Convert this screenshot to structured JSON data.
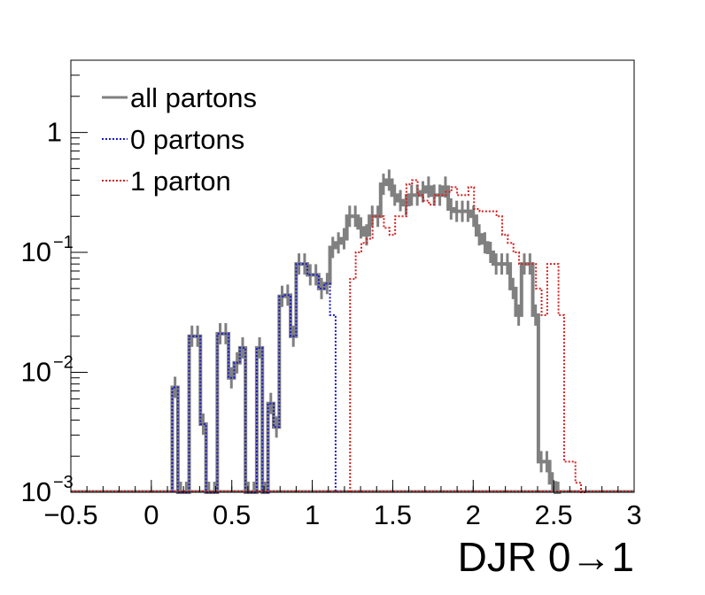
{
  "chart_data": {
    "type": "line",
    "xlabel": "DJR 0→1",
    "ylabel": "",
    "xlim": [
      -0.5,
      3
    ],
    "ylim": [
      0.001,
      4
    ],
    "log_y": true,
    "grid": false,
    "legend_position": "top-left",
    "x_ticks": [
      -0.5,
      0,
      0.5,
      1,
      1.5,
      2,
      2.5,
      3
    ],
    "x_tick_labels": [
      "−0.5",
      "0",
      "0.5",
      "1",
      "1.5",
      "2",
      "2.5",
      "3"
    ],
    "y_ticks": [
      {
        "value": 0.001,
        "base": "10",
        "exp": "−3"
      },
      {
        "value": 0.01,
        "base": "10",
        "exp": "−2"
      },
      {
        "value": 0.1,
        "base": "10",
        "exp": "−1"
      },
      {
        "value": 1,
        "base": "1",
        "exp": ""
      }
    ],
    "bin_width": 0.035,
    "series": [
      {
        "name": "all partons",
        "color": "#808080",
        "style": "solid",
        "start": 0.13,
        "values": [
          0.0075,
          0.001,
          0.001,
          0.02,
          0.02,
          0.0037,
          0.001,
          0.001,
          0.021,
          0.021,
          0.009,
          0.012,
          0.016,
          0.001,
          0.001,
          0.016,
          0.001,
          0.0055,
          0.0035,
          0.043,
          0.044,
          0.02,
          0.08,
          0.08,
          0.065,
          0.065,
          0.05,
          0.055,
          0.11,
          0.12,
          0.13,
          0.2,
          0.2,
          0.16,
          0.14,
          0.2,
          0.2,
          0.37,
          0.4,
          0.3,
          0.27,
          0.25,
          0.3,
          0.3,
          0.32,
          0.35,
          0.3,
          0.3,
          0.35,
          0.23,
          0.22,
          0.22,
          0.22,
          0.2,
          0.14,
          0.12,
          0.1,
          0.08,
          0.08,
          0.08,
          0.05,
          0.03,
          0.08,
          0.08,
          0.03,
          0.0018,
          0.0018,
          0.0012,
          0.001
        ]
      },
      {
        "name": "0 partons",
        "color": "#1a1acc",
        "style": "dotted",
        "start": 0.13,
        "values": [
          0.0075,
          0.001,
          0.001,
          0.02,
          0.02,
          0.0037,
          0.001,
          0.001,
          0.021,
          0.021,
          0.009,
          0.012,
          0.016,
          0.001,
          0.001,
          0.016,
          0.001,
          0.0055,
          0.0035,
          0.043,
          0.044,
          0.02,
          0.08,
          0.08,
          0.065,
          0.065,
          0.05,
          0.055,
          0.03
        ]
      },
      {
        "name": "1 parton",
        "color": "#d42020",
        "style": "dotted",
        "start": 1.235,
        "values": [
          0.06,
          0.1,
          0.12,
          0.13,
          0.2,
          0.2,
          0.16,
          0.14,
          0.2,
          0.2,
          0.37,
          0.4,
          0.3,
          0.27,
          0.25,
          0.3,
          0.3,
          0.32,
          0.35,
          0.3,
          0.3,
          0.35,
          0.23,
          0.22,
          0.22,
          0.22,
          0.2,
          0.14,
          0.12,
          0.1,
          0.08,
          0.08,
          0.08,
          0.05,
          0.03,
          0.08,
          0.08,
          0.03,
          0.0018,
          0.0018,
          0.0012,
          0.001
        ]
      }
    ]
  }
}
